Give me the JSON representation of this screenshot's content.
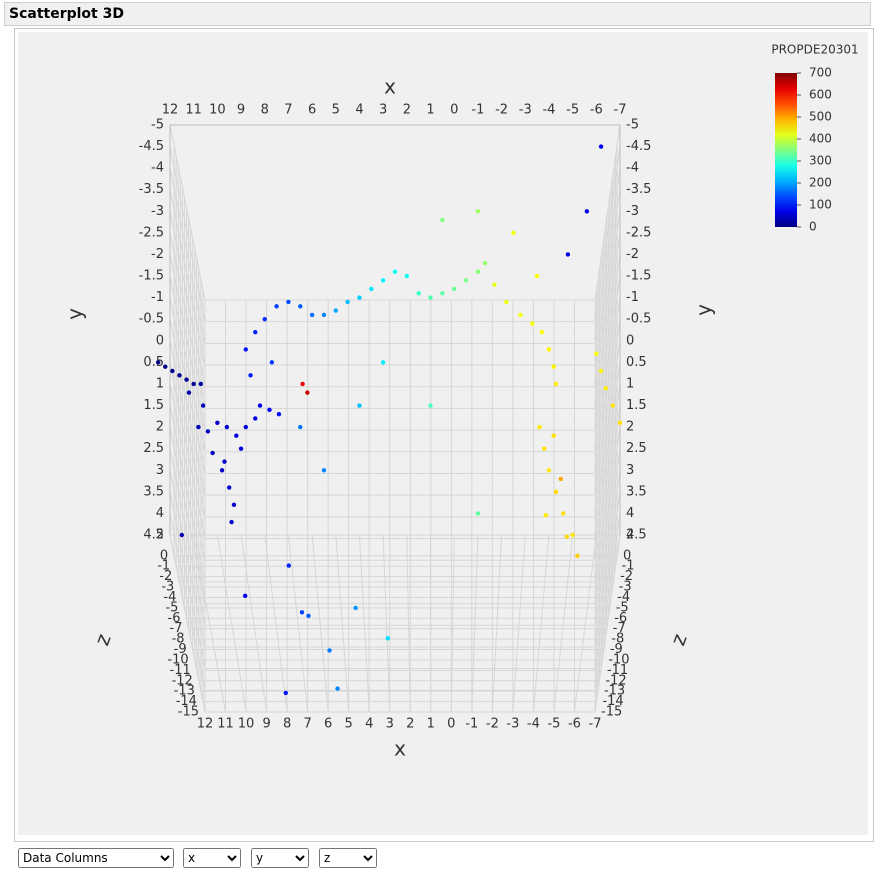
{
  "header": {
    "title": "Scatterplot 3D"
  },
  "chart_data": {
    "type": "scatter3d",
    "xlabel": "x",
    "ylabel": "y",
    "zlabel": "z",
    "xlim": [
      12,
      -7
    ],
    "ylim": [
      -5,
      4.5
    ],
    "zlim": [
      2,
      -15
    ],
    "xticks": [
      12,
      11,
      10,
      9,
      8,
      7,
      6,
      5,
      4,
      3,
      2,
      1,
      0,
      -1,
      -2,
      -3,
      -4,
      -5,
      -6,
      -7
    ],
    "yticks": [
      -5,
      -4.5,
      -4,
      -3.5,
      -3,
      -2.5,
      -2,
      -1.5,
      -1,
      -0.5,
      0,
      0.5,
      1,
      1.5,
      2,
      2.5,
      3,
      3.5,
      4,
      4.5
    ],
    "zticks": [
      2,
      0,
      -1,
      -2,
      -3,
      -4,
      -5,
      -6,
      -7,
      -8,
      -9,
      -10,
      -11,
      -12,
      -13,
      -14,
      -15
    ],
    "grid": true,
    "colorbar_title": "PROPDE20301",
    "clim": [
      0,
      700
    ],
    "cticks": [
      0,
      100,
      200,
      300,
      400,
      500,
      600,
      700
    ],
    "colormap": "jet",
    "x": [
      12.5,
      12.2,
      11.9,
      11.6,
      11.3,
      11.0,
      10.7,
      10.8,
      10.4,
      10,
      9.6,
      9.2,
      8.8,
      8.4,
      10.2,
      9.8,
      9.5,
      9.3,
      9.7,
      9,
      8.2,
      7.8,
      7.4,
      11.2,
      10.6,
      9.4,
      11.5,
      8.8,
      8.4,
      8,
      7.5,
      7,
      6.5,
      6,
      8.6,
      7.7,
      5.5,
      5,
      4.5,
      4,
      3.5,
      3,
      2.5,
      2,
      6.5,
      5.5,
      4,
      3,
      1.5,
      1,
      0.5,
      0,
      -0.5,
      -1,
      -1.3,
      0.5,
      -1,
      1,
      -1,
      -1.7,
      -2.2,
      -2.8,
      -3.3,
      -3.7,
      -4,
      -4.2,
      -4.3,
      -2.5,
      -3.5,
      -3.6,
      -3.8,
      -4,
      -4.3,
      -4.6,
      -5,
      -4.2,
      -3.9,
      -4.8,
      -5.3,
      -4.5,
      -6,
      -6.2,
      -6.4,
      -6.7,
      -7,
      7.5,
      7,
      6.8,
      5.8,
      5.5,
      9.5,
      4.5,
      3,
      8,
      6.2,
      6.4,
      -6.2,
      -5.6,
      -4.8
    ],
    "y": [
      0.5,
      0.6,
      0.7,
      0.8,
      0.9,
      1.0,
      1.0,
      2,
      2.1,
      1.9,
      2,
      2.2,
      2,
      1.8,
      2.6,
      3,
      3.4,
      3.8,
      2.8,
      2.5,
      1.5,
      1.6,
      1.7,
      1.2,
      1.5,
      4.2,
      4.5,
      0.2,
      -0.2,
      -0.5,
      -0.8,
      -0.9,
      -0.8,
      -0.6,
      0.8,
      0.5,
      -0.6,
      -0.7,
      -0.9,
      -1,
      -1.2,
      -1.4,
      -1.6,
      -1.5,
      2,
      3,
      1.5,
      0.5,
      -1.1,
      -1,
      -1.1,
      -1.2,
      -1.4,
      -1.6,
      -1.8,
      -2.8,
      -3,
      1.5,
      4,
      -1.3,
      -0.9,
      -0.6,
      -0.4,
      -0.2,
      0.2,
      0.6,
      1,
      -2.5,
      -1.5,
      2,
      2.5,
      3,
      3.5,
      4,
      4.5,
      2.2,
      3.8,
      4.3,
      4.5,
      3.2,
      0.3,
      0.7,
      1.1,
      1.5,
      1.9,
      2.8,
      3.4,
      3,
      3.8,
      4.2,
      3.5,
      3.3,
      4,
      4.3,
      1.2,
      1,
      -4.5,
      -3,
      -2
    ],
    "z": [
      2,
      2,
      2,
      2,
      2,
      2,
      2,
      2,
      2,
      2,
      2,
      2,
      2,
      2,
      2,
      2,
      2,
      2,
      2,
      2,
      2,
      2,
      2,
      2,
      2,
      2,
      2,
      2,
      2,
      2,
      2,
      2,
      2,
      2,
      2,
      2,
      2,
      2,
      2,
      2,
      2,
      2,
      2,
      2,
      2,
      2,
      2,
      2,
      2,
      2,
      2,
      2,
      2,
      2,
      2,
      2,
      2,
      2,
      2,
      2,
      2,
      2,
      2,
      2,
      2,
      2,
      2,
      2,
      2,
      2,
      2,
      2,
      2,
      2,
      2,
      2,
      1,
      1,
      0,
      2,
      2,
      2,
      2,
      2,
      2,
      -8,
      -10,
      -12,
      -12,
      -14,
      -8,
      -10,
      -10,
      -14,
      2,
      2,
      2,
      2,
      2
    ],
    "values": [
      5,
      8,
      10,
      12,
      15,
      18,
      20,
      40,
      45,
      50,
      55,
      60,
      65,
      70,
      45,
      50,
      55,
      50,
      48,
      62,
      80,
      85,
      95,
      30,
      35,
      50,
      30,
      100,
      110,
      120,
      130,
      140,
      150,
      160,
      105,
      125,
      180,
      200,
      215,
      230,
      245,
      255,
      265,
      275,
      170,
      180,
      220,
      250,
      300,
      315,
      325,
      335,
      345,
      355,
      365,
      350,
      370,
      310,
      330,
      420,
      425,
      430,
      435,
      440,
      445,
      450,
      450,
      430,
      440,
      450,
      455,
      455,
      460,
      460,
      455,
      460,
      450,
      465,
      470,
      500,
      440,
      445,
      450,
      455,
      460,
      110,
      130,
      150,
      170,
      180,
      80,
      190,
      240,
      100,
      650,
      620,
      90,
      80,
      70
    ]
  },
  "controls": [
    "Data Columns",
    "x",
    "y",
    "z"
  ]
}
